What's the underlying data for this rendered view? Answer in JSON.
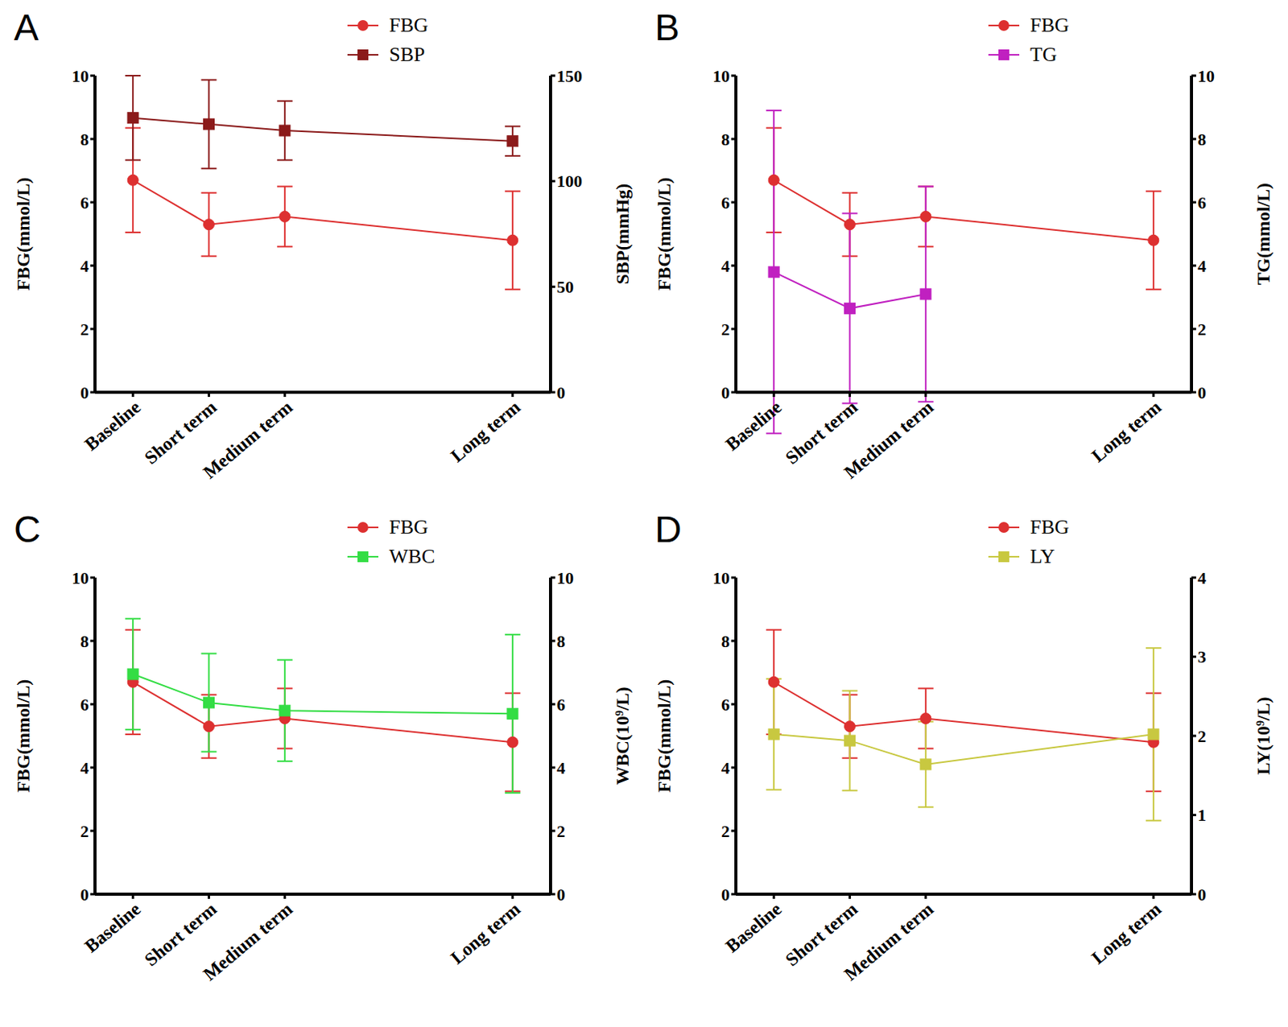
{
  "chart_data": [
    {
      "type": "line",
      "title": "A",
      "x": [
        0,
        1,
        2,
        5
      ],
      "xlim": [
        -0.5,
        5.5
      ],
      "xticks": [
        {
          "value": 0,
          "label": "Baseline"
        },
        {
          "value": 1,
          "label": "Short term"
        },
        {
          "value": 2,
          "label": "Medium term"
        },
        {
          "value": 5,
          "label": "Long term"
        }
      ],
      "ylim": [
        0,
        10
      ],
      "yticks": [
        0,
        2,
        4,
        6,
        8,
        10
      ],
      "y2lim": [
        0,
        150
      ],
      "y2ticks": [
        0,
        50,
        100,
        150
      ],
      "ylabel": "FBG(mmol/L)",
      "y2label": "SBP(mmHg)",
      "legend": "top",
      "series": [
        {
          "name": "FBG",
          "color": "#dd3030",
          "marker": "circle",
          "values": [
            6.7,
            5.3,
            5.55,
            4.8
          ],
          "errors": [
            1.65,
            1.0,
            0.95,
            1.55
          ]
        },
        {
          "name": "SBP",
          "axis": "y2",
          "color": "#8b1a1a",
          "marker": "square",
          "values": [
            130,
            127,
            124,
            119
          ],
          "errors": [
            20,
            21,
            14,
            7
          ]
        }
      ]
    },
    {
      "type": "line",
      "title": "B",
      "x": [
        0,
        1,
        2,
        5
      ],
      "xlim": [
        -0.5,
        5.5
      ],
      "xticks": [
        {
          "value": 0,
          "label": "Baseline"
        },
        {
          "value": 1,
          "label": "Short term"
        },
        {
          "value": 2,
          "label": "Medium term"
        },
        {
          "value": 5,
          "label": "Long term"
        }
      ],
      "ylim": [
        0,
        10
      ],
      "yticks": [
        0,
        2,
        4,
        6,
        8,
        10
      ],
      "y2lim": [
        0,
        10
      ],
      "y2ticks": [
        0,
        2,
        4,
        6,
        8,
        10
      ],
      "ylabel": "FBG(mmol/L)",
      "y2label": "TG(mmol/L)",
      "legend": "top",
      "series": [
        {
          "name": "FBG",
          "color": "#dd3030",
          "marker": "circle",
          "values": [
            6.7,
            5.3,
            5.55,
            4.8
          ],
          "errors": [
            1.65,
            1.0,
            0.95,
            1.55
          ]
        },
        {
          "name": "TG",
          "axis": "y2",
          "color": "#c020c0",
          "marker": "square",
          "values": [
            3.8,
            2.65,
            3.1,
            null
          ],
          "errors": [
            5.1,
            3.0,
            3.4,
            null
          ]
        }
      ]
    },
    {
      "type": "line",
      "title": "C",
      "x": [
        0,
        1,
        2,
        5
      ],
      "xlim": [
        -0.5,
        5.5
      ],
      "xticks": [
        {
          "value": 0,
          "label": "Baseline"
        },
        {
          "value": 1,
          "label": "Short term"
        },
        {
          "value": 2,
          "label": "Medium term"
        },
        {
          "value": 5,
          "label": "Long term"
        }
      ],
      "ylim": [
        0,
        10
      ],
      "yticks": [
        0,
        2,
        4,
        6,
        8,
        10
      ],
      "y2lim": [
        0,
        10
      ],
      "y2ticks": [
        0,
        2,
        4,
        6,
        8,
        10
      ],
      "ylabel": "FBG(mmol/L)",
      "y2label": "WBC(10⁹/L)",
      "legend": "top",
      "series": [
        {
          "name": "FBG",
          "color": "#dd3030",
          "marker": "circle",
          "values": [
            6.7,
            5.3,
            5.55,
            4.8
          ],
          "errors": [
            1.65,
            1.0,
            0.95,
            1.55
          ]
        },
        {
          "name": "WBC",
          "axis": "y2",
          "color": "#33dd44",
          "marker": "square",
          "values": [
            6.95,
            6.05,
            5.8,
            5.7
          ],
          "errors": [
            1.75,
            1.55,
            1.6,
            2.5
          ]
        }
      ]
    },
    {
      "type": "line",
      "title": "D",
      "x": [
        0,
        1,
        2,
        5
      ],
      "xlim": [
        -0.5,
        5.5
      ],
      "xticks": [
        {
          "value": 0,
          "label": "Baseline"
        },
        {
          "value": 1,
          "label": "Short term"
        },
        {
          "value": 2,
          "label": "Medium term"
        },
        {
          "value": 5,
          "label": "Long term"
        }
      ],
      "ylim": [
        0,
        10
      ],
      "yticks": [
        0,
        2,
        4,
        6,
        8,
        10
      ],
      "y2lim": [
        0,
        4
      ],
      "y2ticks": [
        0,
        1,
        2,
        3,
        4
      ],
      "ylabel": "FBG(mmol/L)",
      "y2label": "LY(10⁹/L)",
      "legend": "top",
      "series": [
        {
          "name": "FBG",
          "color": "#dd3030",
          "marker": "circle",
          "values": [
            6.7,
            5.3,
            5.55,
            4.8
          ],
          "errors": [
            1.65,
            1.0,
            0.95,
            1.55
          ]
        },
        {
          "name": "LY",
          "axis": "y2",
          "color": "#c8c840",
          "marker": "square",
          "values": [
            2.02,
            1.94,
            1.64,
            2.02
          ],
          "errors": [
            0.7,
            0.63,
            0.54,
            1.09
          ]
        }
      ]
    }
  ]
}
